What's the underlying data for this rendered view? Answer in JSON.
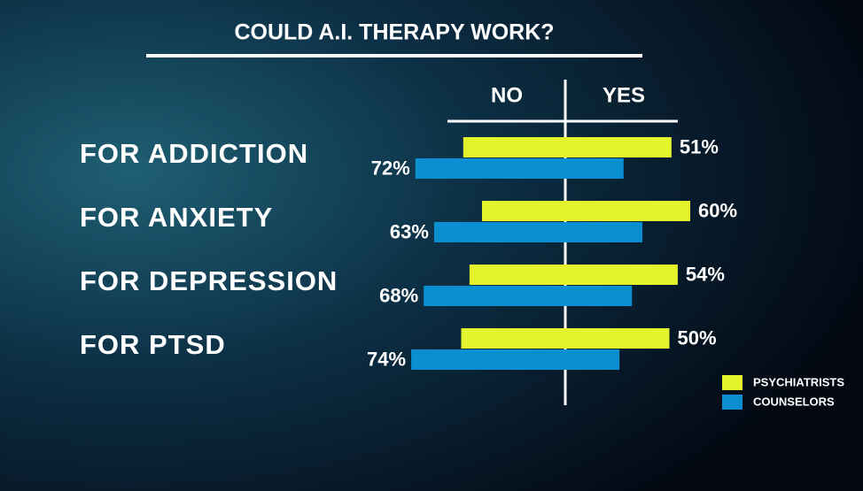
{
  "chart_data": {
    "type": "diverging-bar",
    "title": "COULD A.I. THERAPY WORK?",
    "x_headers": [
      "NO",
      "YES"
    ],
    "categories": [
      "FOR ADDICTION",
      "FOR ANXIETY",
      "FOR DEPRESSION",
      "FOR PTSD"
    ],
    "xlim": [
      -100,
      100
    ],
    "series": [
      {
        "name": "PSYCHIATRISTS",
        "color": "#e4f42c",
        "values": [
          51,
          60,
          54,
          50
        ],
        "value_labels": [
          "51%",
          "60%",
          "54%",
          "50%"
        ]
      },
      {
        "name": "COUNSELORS",
        "color": "#0b8fd1",
        "values": [
          -72,
          -63,
          -68,
          -74
        ],
        "value_labels": [
          "72%",
          "63%",
          "68%",
          "74%"
        ]
      }
    ]
  }
}
